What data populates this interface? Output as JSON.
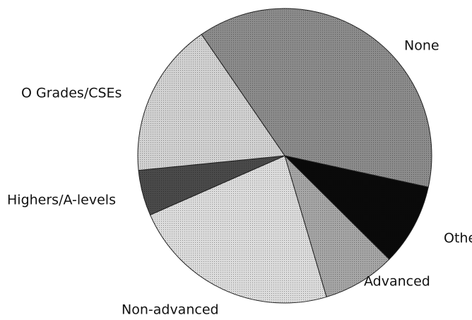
{
  "chart_data": {
    "type": "pie",
    "categories": [
      "None",
      "Other",
      "Advanced",
      "Non-advanced",
      "Highers/A-levels",
      "O Grades/CSEs"
    ],
    "values": [
      38,
      9,
      8,
      23,
      5,
      17
    ],
    "colors": [
      "#8c8c8c",
      "#0a0a0a",
      "#a6a6a6",
      "#dcdcdc",
      "#4a4a4a",
      "#d2d2d2"
    ]
  }
}
